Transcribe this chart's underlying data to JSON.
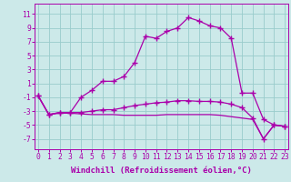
{
  "title": "",
  "xlabel": "Windchill (Refroidissement éolien,°C)",
  "ylabel": "",
  "background_color": "#cce9e9",
  "line_color": "#aa00aa",
  "grid_color": "#99cccc",
  "x": [
    0,
    1,
    2,
    3,
    4,
    5,
    6,
    7,
    8,
    9,
    10,
    11,
    12,
    13,
    14,
    15,
    16,
    17,
    18,
    19,
    20,
    21,
    22,
    23
  ],
  "line1": [
    -0.8,
    -3.5,
    -3.2,
    -3.2,
    -1.0,
    0.0,
    1.3,
    1.3,
    2.0,
    4.0,
    7.8,
    7.5,
    8.5,
    9.0,
    10.5,
    10.0,
    9.3,
    9.0,
    7.5,
    -0.4,
    -0.4,
    -4.2,
    -5.0,
    -5.2
  ],
  "line2": [
    -0.8,
    -3.5,
    -3.2,
    -3.2,
    -3.2,
    -3.0,
    -2.8,
    -2.8,
    -2.5,
    -2.2,
    -2.0,
    -1.8,
    -1.7,
    -1.5,
    -1.5,
    -1.6,
    -1.6,
    -1.7,
    -2.0,
    -2.5,
    -4.0,
    -7.0,
    -5.0,
    -5.2
  ],
  "line3": [
    -0.8,
    -3.5,
    -3.3,
    -3.3,
    -3.4,
    -3.5,
    -3.5,
    -3.5,
    -3.6,
    -3.6,
    -3.6,
    -3.6,
    -3.5,
    -3.5,
    -3.5,
    -3.5,
    -3.5,
    -3.6,
    -3.8,
    -4.0,
    -4.2,
    -7.0,
    -5.0,
    -5.2
  ],
  "yticks": [
    -7,
    -5,
    -3,
    -1,
    1,
    3,
    5,
    7,
    9,
    11
  ],
  "xticks": [
    0,
    1,
    2,
    3,
    4,
    5,
    6,
    7,
    8,
    9,
    10,
    11,
    12,
    13,
    14,
    15,
    16,
    17,
    18,
    19,
    20,
    21,
    22,
    23
  ],
  "ylim": [
    -8.5,
    12.5
  ],
  "xlim": [
    -0.3,
    23.3
  ],
  "marker": "+",
  "markersize": 4,
  "markeredgewidth": 1.0,
  "linewidth": 0.9,
  "fontsize_label": 6.5,
  "fontsize_tick": 5.8
}
